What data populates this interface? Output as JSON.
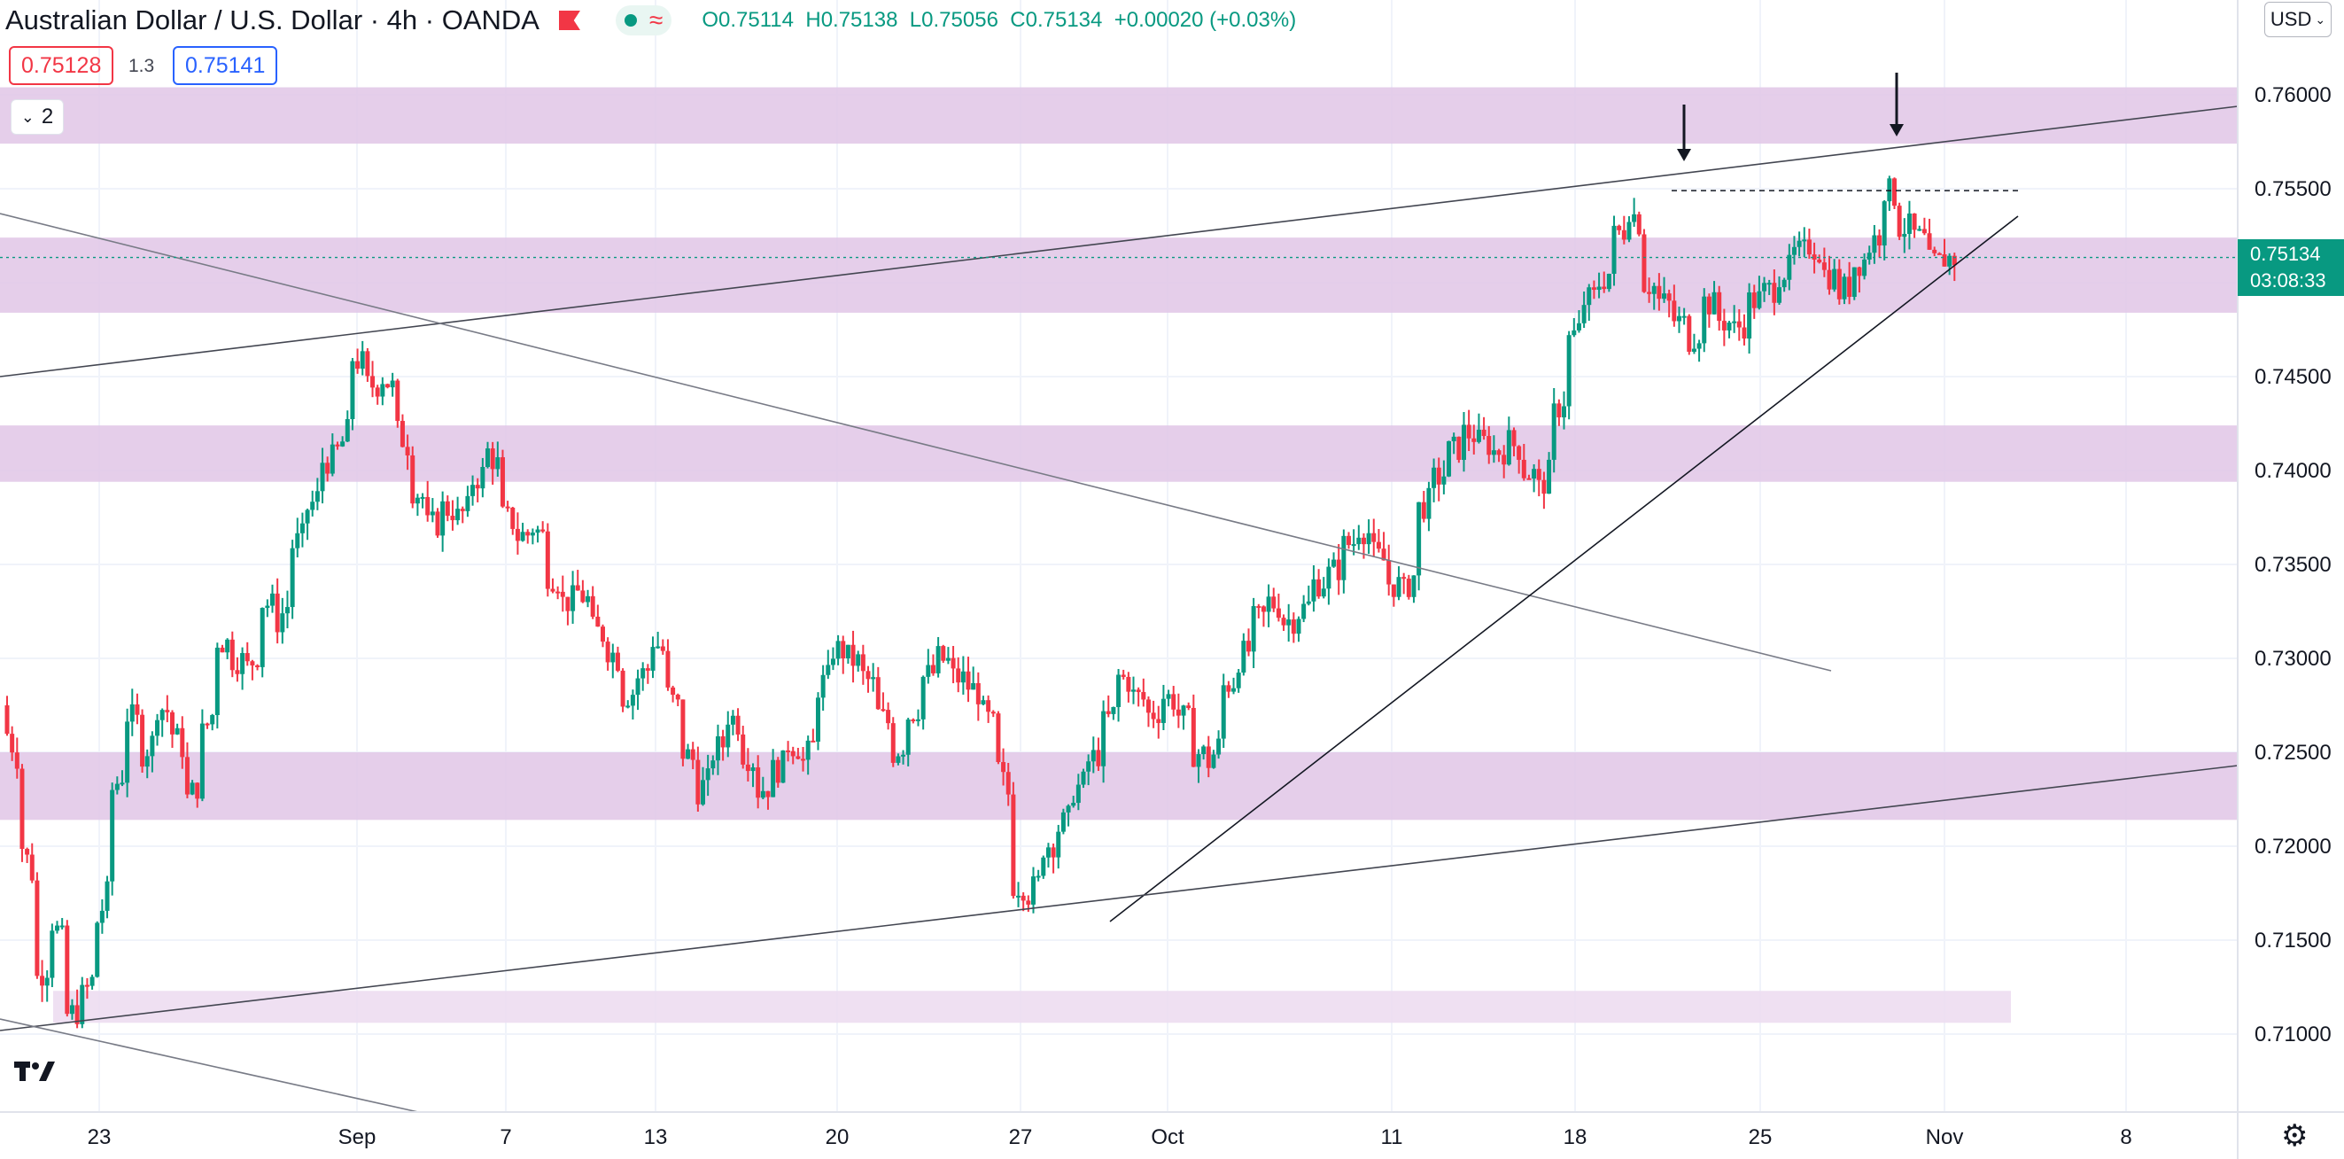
{
  "header": {
    "symbol_title": "Australian Dollar / U.S. Dollar · 4h · OANDA",
    "ohlc": {
      "open_label": "O",
      "open": "0.75114",
      "high_label": "H",
      "high": "0.75138",
      "low_label": "L",
      "low": "0.75056",
      "close_label": "C",
      "close": "0.75134",
      "change": "+0.00020 (+0.03%)"
    }
  },
  "trade": {
    "sell_price": "0.75128",
    "spread": "1.3",
    "buy_price": "0.75141"
  },
  "indicators_toggle": {
    "count": "2"
  },
  "currency_button": "USD",
  "last_price": {
    "price": "0.75134",
    "countdown": "03:08:33"
  },
  "colors": {
    "up": "#089981",
    "down": "#f23645",
    "zone": "#e1c6e6",
    "zone_light": "#ecdaf0",
    "line": "#000000",
    "grid": "#f0f3fa"
  },
  "chart_data": {
    "type": "candlestick",
    "title": "Australian Dollar / U.S. Dollar",
    "interval": "4h",
    "exchange": "OANDA",
    "y_axis": {
      "ylim": [
        0.7065,
        0.7646
      ],
      "ticks": [
        "0.76000",
        "0.75500",
        "0.75000",
        "0.74500",
        "0.74000",
        "0.73500",
        "0.73000",
        "0.72500",
        "0.72000",
        "0.71500",
        "0.71000"
      ]
    },
    "x_axis": {
      "ticks": [
        "23",
        "Sep",
        "7",
        "13",
        "20",
        "27",
        "Oct",
        "11",
        "18",
        "25",
        "Nov",
        "8"
      ]
    },
    "grid": true,
    "close_path": [
      [
        0,
        0.726
      ],
      [
        1,
        0.72
      ],
      [
        2,
        0.713
      ],
      [
        3,
        0.716
      ],
      [
        4,
        0.711
      ],
      [
        5,
        0.712
      ],
      [
        6,
        0.716
      ],
      [
        7,
        0.723
      ],
      [
        8,
        0.727
      ],
      [
        9,
        0.725
      ],
      [
        10,
        0.7275
      ],
      [
        11,
        0.726
      ],
      [
        12,
        0.7225
      ],
      [
        13,
        0.726
      ],
      [
        14,
        0.731
      ],
      [
        15,
        0.73
      ],
      [
        16,
        0.7295
      ],
      [
        17,
        0.733
      ],
      [
        18,
        0.732
      ],
      [
        19,
        0.736
      ],
      [
        20,
        0.738
      ],
      [
        21,
        0.7405
      ],
      [
        22,
        0.741
      ],
      [
        23,
        0.746
      ],
      [
        24,
        0.7445
      ],
      [
        25,
        0.745
      ],
      [
        26,
        0.742
      ],
      [
        27,
        0.739
      ],
      [
        28,
        0.737
      ],
      [
        29,
        0.738
      ],
      [
        30,
        0.7375
      ],
      [
        31,
        0.7395
      ],
      [
        32,
        0.741
      ],
      [
        33,
        0.7375
      ],
      [
        34,
        0.7365
      ],
      [
        35,
        0.737
      ],
      [
        36,
        0.7345
      ],
      [
        37,
        0.733
      ],
      [
        38,
        0.7335
      ],
      [
        39,
        0.7315
      ],
      [
        40,
        0.7305
      ],
      [
        41,
        0.728
      ],
      [
        42,
        0.729
      ],
      [
        43,
        0.731
      ],
      [
        44,
        0.728
      ],
      [
        45,
        0.725
      ],
      [
        46,
        0.723
      ],
      [
        47,
        0.725
      ],
      [
        48,
        0.727
      ],
      [
        49,
        0.725
      ],
      [
        50,
        0.723
      ],
      [
        51,
        0.724
      ],
      [
        52,
        0.7255
      ],
      [
        53,
        0.7245
      ],
      [
        54,
        0.7285
      ],
      [
        55,
        0.7305
      ],
      [
        56,
        0.73
      ],
      [
        57,
        0.729
      ],
      [
        58,
        0.727
      ],
      [
        59,
        0.725
      ],
      [
        60,
        0.727
      ],
      [
        61,
        0.729
      ],
      [
        62,
        0.73
      ],
      [
        63,
        0.729
      ],
      [
        64,
        0.7285
      ],
      [
        65,
        0.727
      ],
      [
        66,
        0.724
      ],
      [
        67,
        0.718
      ],
      [
        68,
        0.7175
      ],
      [
        69,
        0.72
      ],
      [
        70,
        0.721
      ],
      [
        71,
        0.723
      ],
      [
        72,
        0.7245
      ],
      [
        73,
        0.7265
      ],
      [
        74,
        0.729
      ],
      [
        75,
        0.728
      ],
      [
        76,
        0.727
      ],
      [
        77,
        0.728
      ],
      [
        78,
        0.727
      ],
      [
        79,
        0.725
      ],
      [
        80,
        0.7245
      ],
      [
        81,
        0.7285
      ],
      [
        82,
        0.73
      ],
      [
        83,
        0.732
      ],
      [
        84,
        0.733
      ],
      [
        85,
        0.732
      ],
      [
        86,
        0.7325
      ],
      [
        87,
        0.734
      ],
      [
        88,
        0.7345
      ],
      [
        89,
        0.736
      ],
      [
        90,
        0.737
      ],
      [
        91,
        0.7355
      ],
      [
        92,
        0.734
      ],
      [
        93,
        0.7335
      ],
      [
        94,
        0.738
      ],
      [
        95,
        0.7395
      ],
      [
        96,
        0.741
      ],
      [
        97,
        0.742
      ],
      [
        98,
        0.7415
      ],
      [
        99,
        0.741
      ],
      [
        100,
        0.7415
      ],
      [
        101,
        0.74
      ],
      [
        102,
        0.739
      ],
      [
        103,
        0.743
      ],
      [
        104,
        0.747
      ],
      [
        105,
        0.749
      ],
      [
        106,
        0.75
      ],
      [
        107,
        0.7525
      ],
      [
        108,
        0.754
      ],
      [
        109,
        0.75
      ],
      [
        110,
        0.749
      ],
      [
        111,
        0.748
      ],
      [
        112,
        0.747
      ],
      [
        113,
        0.749
      ],
      [
        114,
        0.748
      ],
      [
        115,
        0.7475
      ],
      [
        116,
        0.749
      ],
      [
        117,
        0.7495
      ],
      [
        118,
        0.7505
      ],
      [
        119,
        0.7515
      ],
      [
        120,
        0.752
      ],
      [
        121,
        0.7505
      ],
      [
        122,
        0.7495
      ],
      [
        123,
        0.751
      ],
      [
        124,
        0.752
      ],
      [
        125,
        0.755
      ],
      [
        126,
        0.753
      ],
      [
        127,
        0.7525
      ],
      [
        128,
        0.751
      ],
      [
        129,
        0.7513
      ]
    ],
    "zones": [
      {
        "from": 0.7574,
        "to": 0.7604
      },
      {
        "from": 0.7484,
        "to": 0.7524
      },
      {
        "from": 0.7394,
        "to": 0.7424
      },
      {
        "from": 0.7214,
        "to": 0.725
      },
      {
        "from": 0.7106,
        "to": 0.7123
      }
    ],
    "annotations": {
      "resistance_line": 0.7549,
      "arrows": 2
    }
  }
}
